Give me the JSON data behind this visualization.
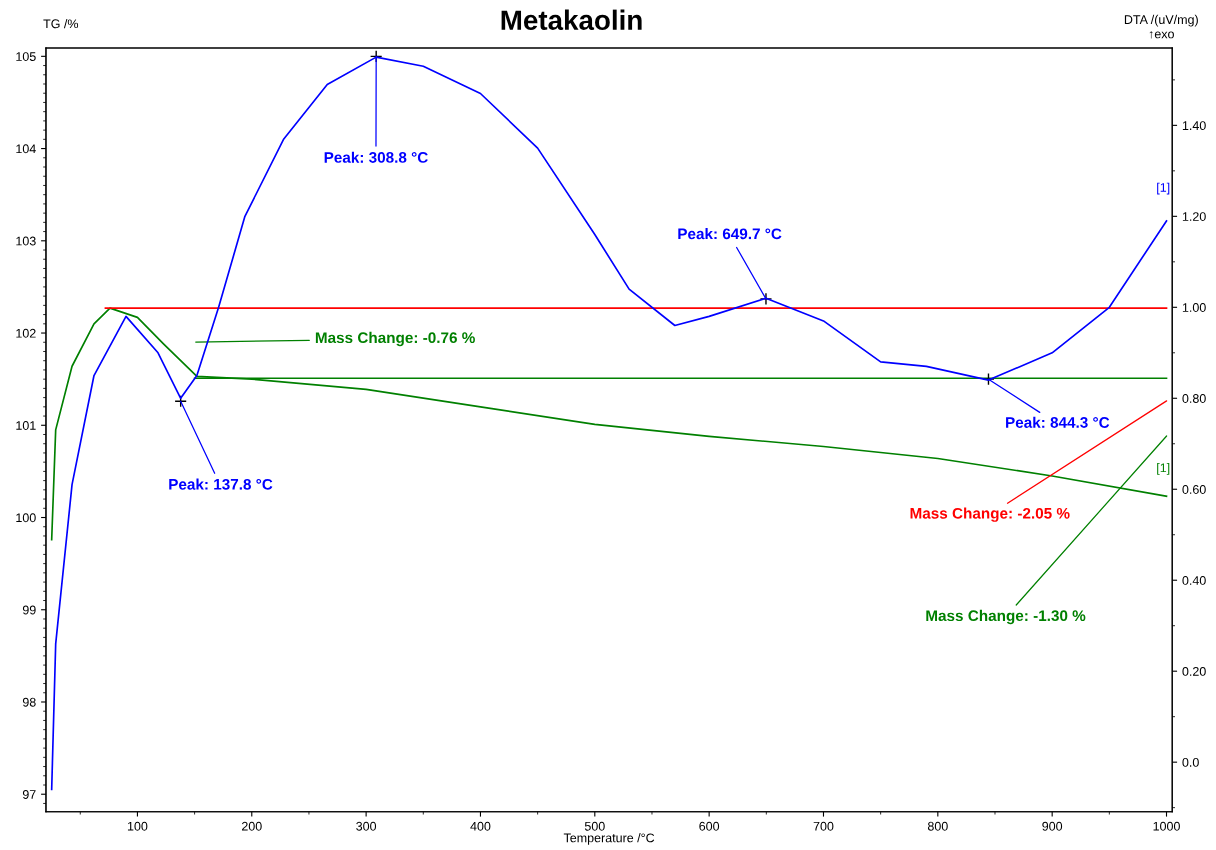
{
  "chart_data": {
    "type": "line",
    "title": "Metakaolin",
    "xlabel": "Temperature /°C",
    "ylabel": "TG /%",
    "y2label": "DTA /(uV/mg)\n↑exo",
    "series": [
      {
        "name": null,
        "color": "#008000",
        "x": [
          25,
          28.5,
          42.8,
          62,
          76,
          100,
          123,
          152,
          200,
          300,
          400,
          500,
          600,
          700,
          800,
          900,
          1000
        ],
        "values": [
          99.76,
          100.95,
          101.64,
          102.1,
          102.27,
          102.17,
          101.88,
          101.53,
          101.5,
          101.39,
          101.2,
          101.01,
          100.88,
          100.77,
          100.64,
          100.45,
          100.23
        ]
      },
      {
        "name": null,
        "color": "#0000ff",
        "axis": "y2",
        "x": [
          25,
          28.5,
          42.8,
          62,
          90,
          118,
          137.8,
          152,
          171,
          194,
          228,
          266,
          308.8,
          350,
          400,
          450,
          500,
          530,
          570,
          600,
          649.7,
          700,
          750,
          790,
          844.3,
          900,
          950,
          1000
        ],
        "values": [
          -0.06,
          0.26,
          0.61,
          0.85,
          0.98,
          0.9,
          0.8,
          0.85,
          1.0,
          1.2,
          1.37,
          1.49,
          1.55,
          1.53,
          1.47,
          1.35,
          1.16,
          1.04,
          0.96,
          0.98,
          1.02,
          0.97,
          0.88,
          0.87,
          0.84,
          0.9,
          1.0,
          1.19
        ]
      },
      {
        "name": null,
        "color": "#ff0000",
        "x": [
          72,
          1000
        ],
        "values": [
          102.27,
          102.27
        ]
      },
      {
        "name": null,
        "color": "#008000",
        "x": [
          150,
          1000
        ],
        "values": [
          101.51,
          101.51
        ]
      }
    ],
    "annotations": [
      {
        "text": "Peak: 308.8 °C",
        "x": 308.8,
        "y": 105.0
      },
      {
        "text": "Peak: 137.8 °C",
        "x": 137.8,
        "y": 101.26
      },
      {
        "text": "Peak: 649.7 °C",
        "x": 649.7,
        "y": 102.37
      },
      {
        "text": "Peak: 844.3 °C",
        "x": 844.3,
        "y": 101.5
      },
      "Mass Change: -0.76 %",
      "Mass Change: -2.05 %",
      "Mass Change: -1.30 %",
      "[1]",
      "[1]"
    ],
    "xlim": [
      20,
      1005
    ],
    "xticks": [
      100,
      200,
      300,
      400,
      500,
      600,
      700,
      800,
      900,
      1000
    ],
    "ylim": [
      96.81,
      105.09
    ],
    "yticks": [
      97,
      98,
      99,
      100,
      101,
      102,
      103,
      104,
      105
    ],
    "y2lim": [
      -0.109,
      1.57
    ],
    "y2ticks": [
      {
        "value": 0,
        "label": "0.0"
      },
      {
        "value": 0.2,
        "label": "0.20"
      },
      {
        "value": 0.4,
        "label": "0.40"
      },
      {
        "value": 0.6,
        "label": "0.60"
      },
      {
        "value": 0.8,
        "label": "0.80"
      },
      {
        "value": 1.0,
        "label": "1.00"
      },
      {
        "value": 1.2,
        "label": "1.20"
      },
      {
        "value": 1.4,
        "label": "1.40"
      }
    ],
    "grid": false,
    "marker": "none",
    "line_style": "solid"
  }
}
